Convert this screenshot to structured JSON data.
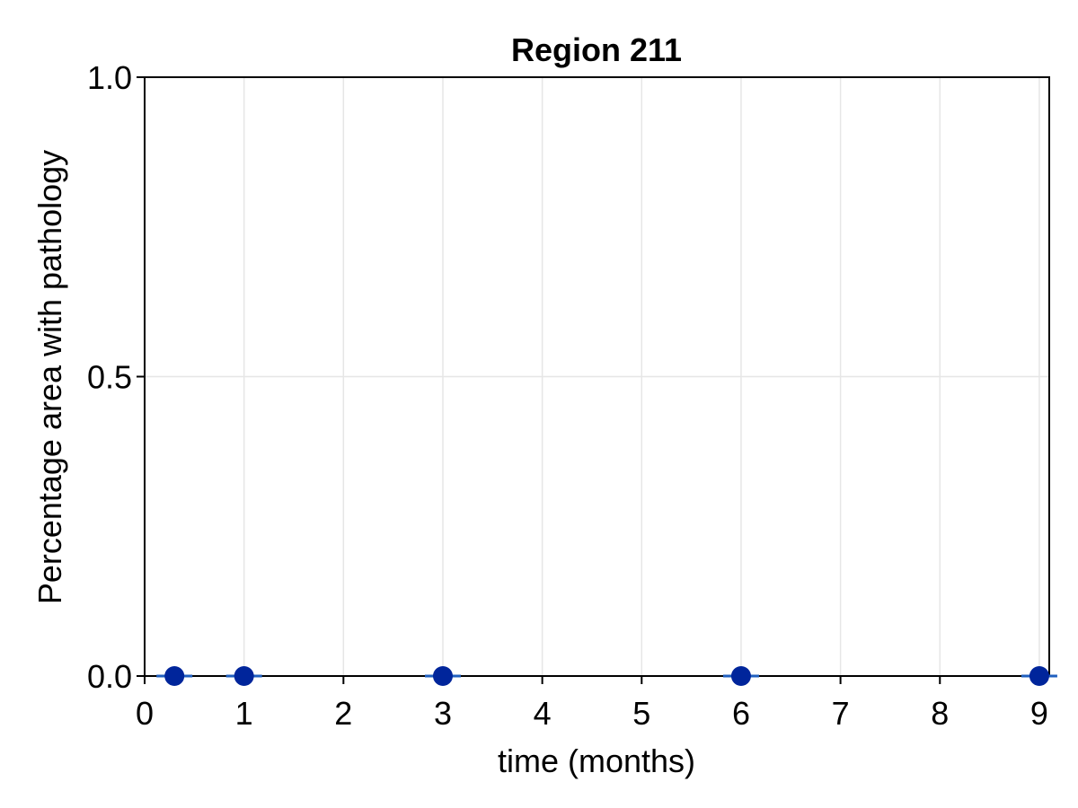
{
  "chart_data": {
    "type": "scatter",
    "title": "Region 211",
    "xlabel": "time (months)",
    "ylabel": "Percentage area with pathology",
    "xlim": [
      0,
      9.1
    ],
    "ylim": [
      0,
      1
    ],
    "xticks": [
      0,
      1,
      2,
      3,
      4,
      5,
      6,
      7,
      8,
      9
    ],
    "yticks": [
      0.0,
      0.5,
      1.0
    ],
    "ytick_labels": [
      "0.0",
      "0.5",
      "1.0"
    ],
    "grid": true,
    "marker_color": "#00259b",
    "errorbar_color": "#1f5fbf",
    "grid_color": "#e6e6e6",
    "points": [
      {
        "x": 0.3,
        "y": 0.0,
        "err": 0.0
      },
      {
        "x": 1.0,
        "y": 0.0,
        "err": 0.0
      },
      {
        "x": 3.0,
        "y": 0.0,
        "err": 0.0
      },
      {
        "x": 6.0,
        "y": 0.0,
        "err": 0.0
      },
      {
        "x": 9.0,
        "y": 0.0,
        "err": 0.0
      }
    ]
  }
}
